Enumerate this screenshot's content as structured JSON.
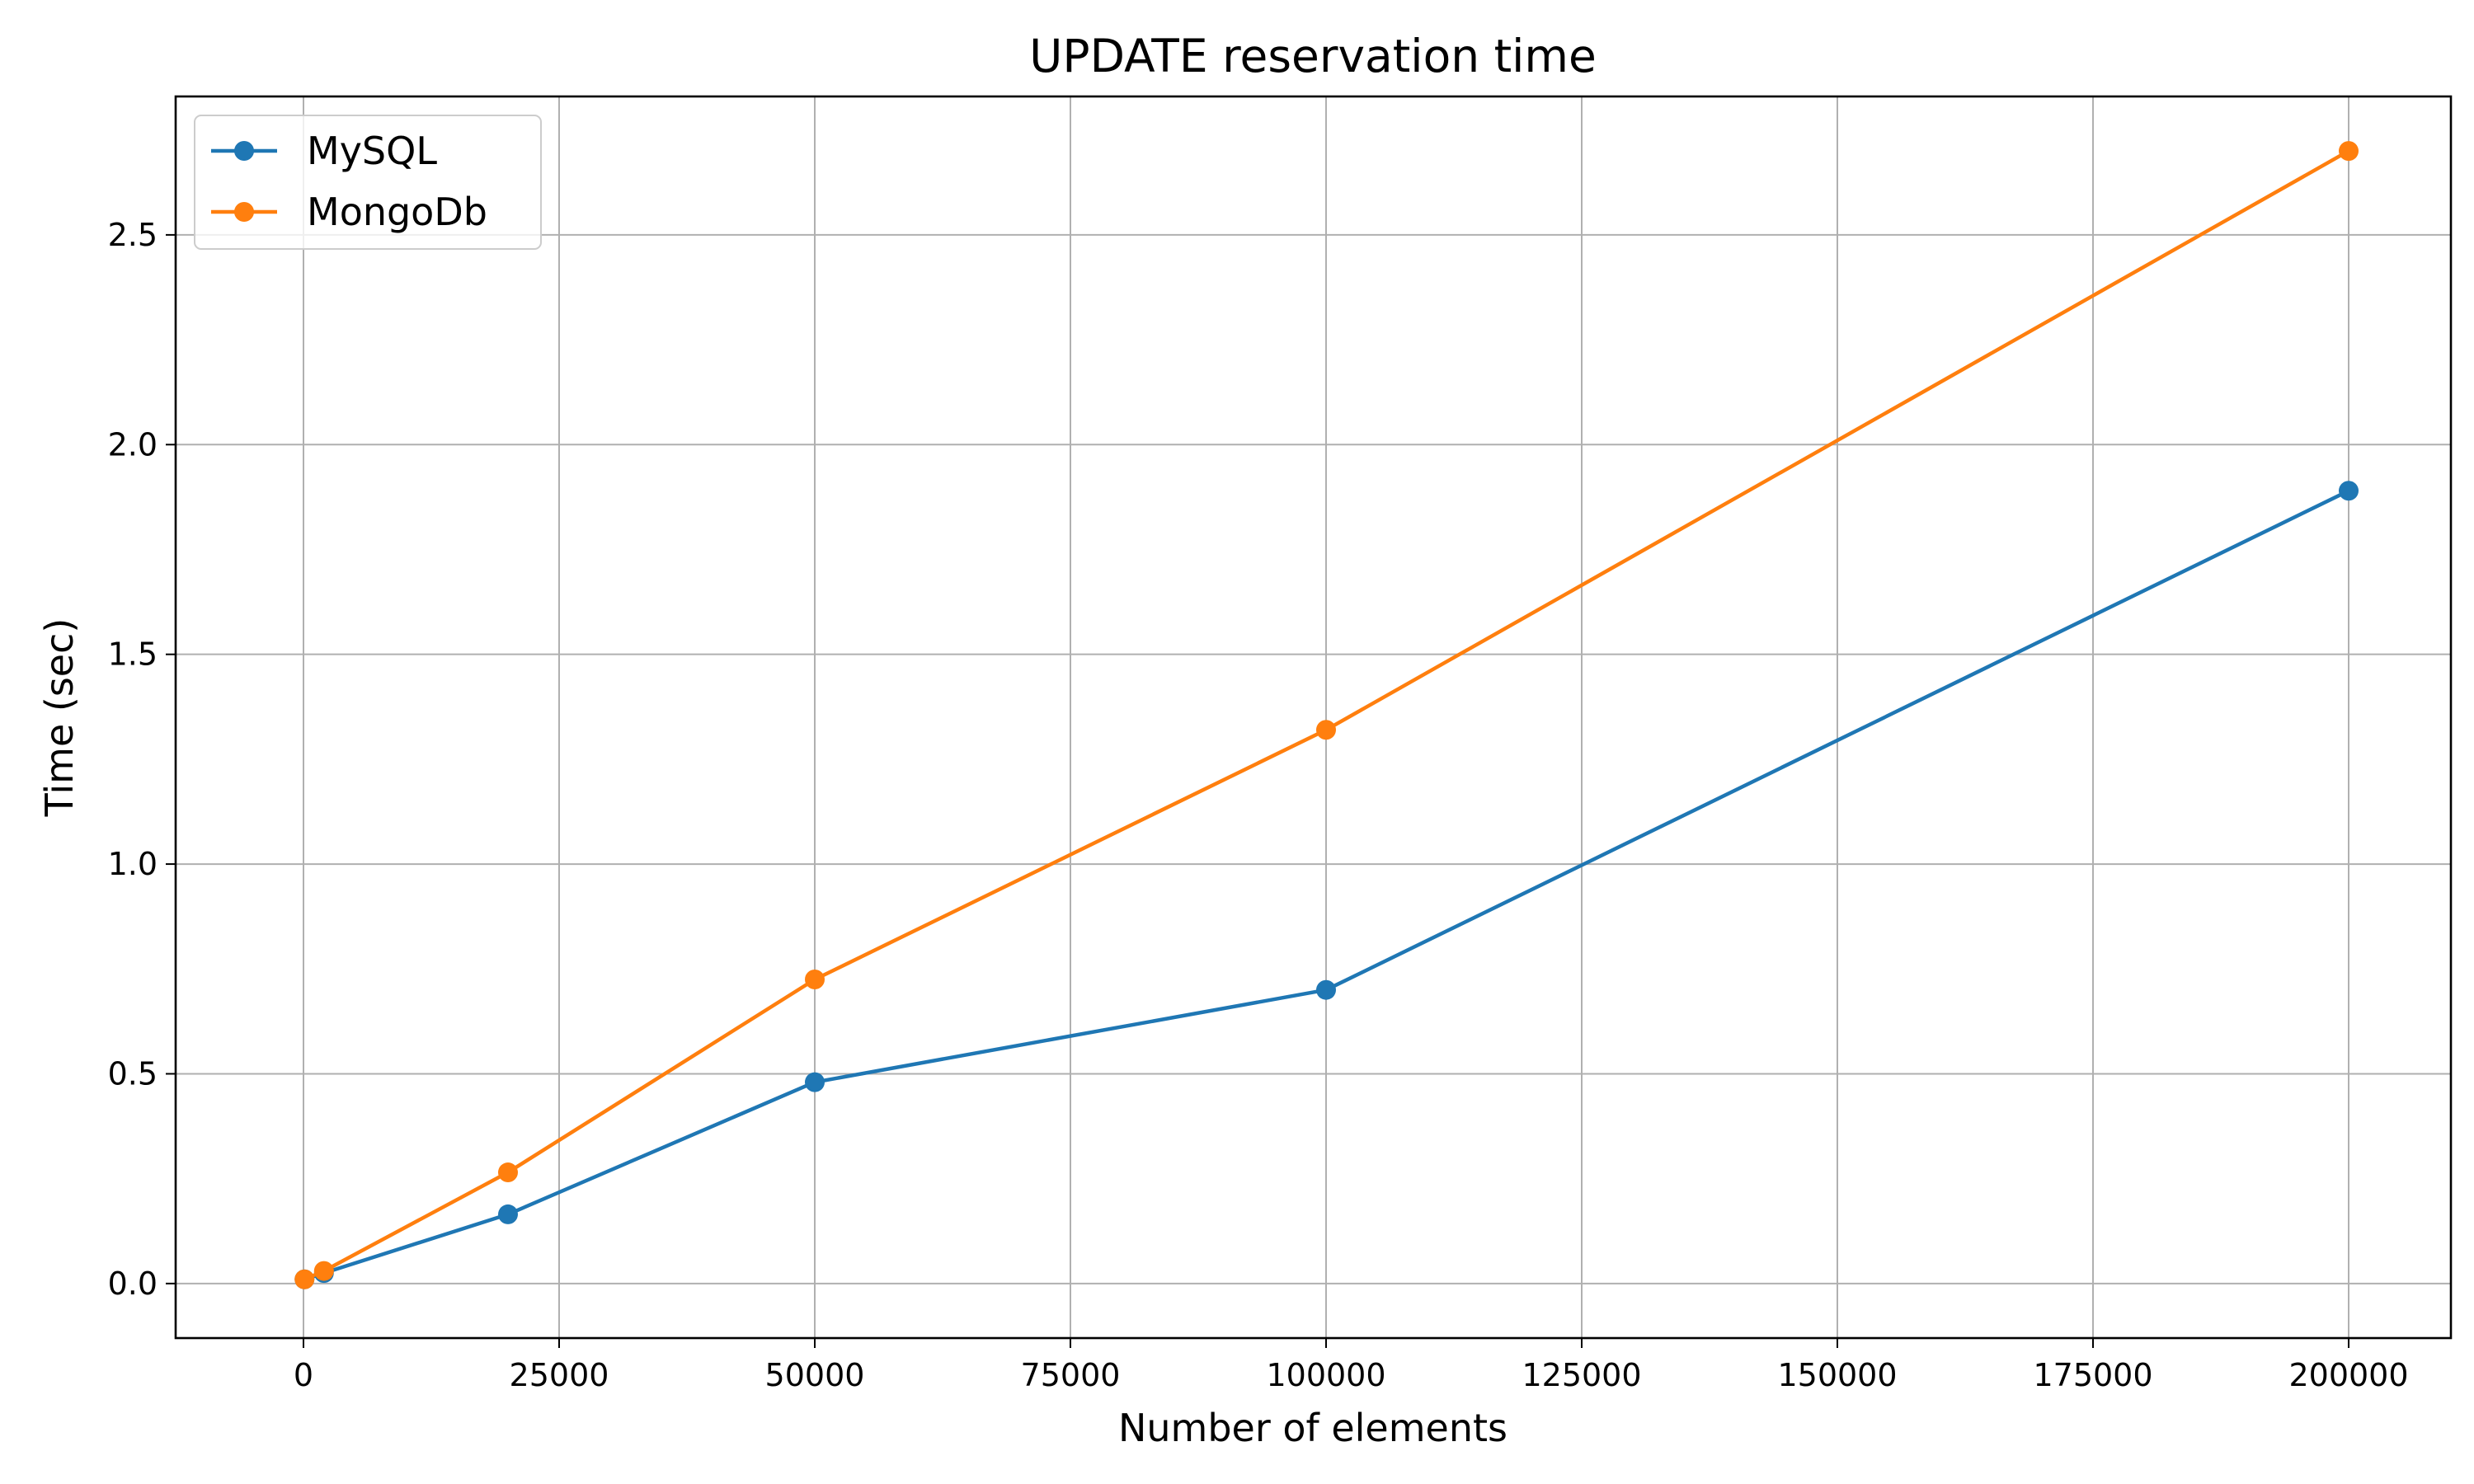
{
  "chart_data": {
    "type": "line",
    "title": "UPDATE reservation time",
    "xlabel": "Number of elements",
    "ylabel": "Time (sec)",
    "xlim": [
      -12500,
      210000
    ],
    "ylim": [
      -0.13,
      2.83
    ],
    "xticks": [
      0,
      25000,
      50000,
      75000,
      100000,
      125000,
      150000,
      175000,
      200000
    ],
    "yticks": [
      0.0,
      0.5,
      1.0,
      1.5,
      2.0,
      2.5
    ],
    "xtick_labels": [
      "0",
      "25000",
      "50000",
      "75000",
      "100000",
      "125000",
      "150000",
      "175000",
      "200000"
    ],
    "ytick_labels": [
      "0.0",
      "0.5",
      "1.0",
      "1.5",
      "2.0",
      "2.5"
    ],
    "grid": true,
    "legend_position": "top-left",
    "series": [
      {
        "name": "MySQL",
        "color": "#1f77b4",
        "marker": "circle",
        "x": [
          100,
          2000,
          20000,
          50000,
          100000,
          200000
        ],
        "y": [
          0.01,
          0.025,
          0.165,
          0.48,
          0.7,
          1.89
        ]
      },
      {
        "name": "MongoDb",
        "color": "#ff7f0e",
        "marker": "circle",
        "x": [
          100,
          2000,
          20000,
          50000,
          100000,
          200000
        ],
        "y": [
          0.01,
          0.03,
          0.265,
          0.725,
          1.32,
          2.7
        ]
      }
    ]
  }
}
